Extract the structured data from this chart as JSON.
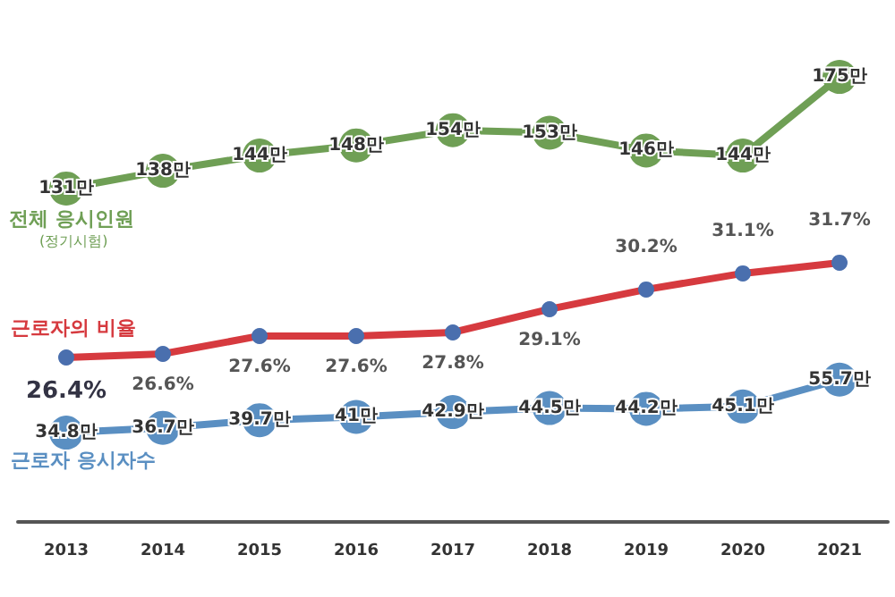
{
  "chart_data": {
    "type": "line",
    "categories": [
      "2013",
      "2014",
      "2015",
      "2016",
      "2017",
      "2018",
      "2019",
      "2020",
      "2021"
    ],
    "series": [
      {
        "name": "전체 응시인원",
        "color": "#6f9f55",
        "values": [
          131,
          138,
          144,
          148,
          154,
          153,
          146,
          144,
          175
        ],
        "value_labels": [
          "131만",
          "138만",
          "144만",
          "148만",
          "154만",
          "153만",
          "146만",
          "144만",
          "175만"
        ]
      },
      {
        "name": "근로자의 비율",
        "color": "#d63a3f",
        "axis": "y2",
        "values": [
          26.4,
          26.6,
          27.6,
          27.6,
          27.8,
          29.1,
          30.2,
          31.1,
          31.7
        ],
        "value_labels": [
          "26.4%",
          "26.6%",
          "27.6%",
          "27.6%",
          "27.8%",
          "29.1%",
          "30.2%",
          "31.1%",
          "31.7%"
        ]
      },
      {
        "name": "근로자 응시자수",
        "color": "#5a8fc2",
        "values": [
          34.8,
          36.7,
          39.7,
          41,
          42.9,
          44.5,
          44.2,
          45.1,
          55.7
        ],
        "value_labels": [
          "34.8만",
          "36.7만",
          "39.7만",
          "41만",
          "42.9만",
          "44.5만",
          "44.2만",
          "45.1만",
          "55.7만"
        ]
      }
    ],
    "annotations": [
      "(정기시험)"
    ],
    "marker": "circle",
    "line_style": "solid",
    "grid": false,
    "legend": false,
    "tick_labels": "x"
  }
}
